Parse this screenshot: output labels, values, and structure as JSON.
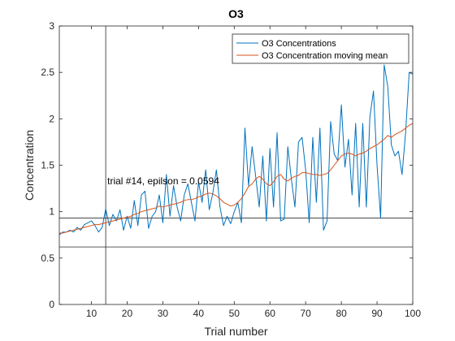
{
  "chart_data": {
    "type": "line",
    "title": "O3",
    "xlabel": "Trial number",
    "ylabel": "Concentration",
    "xlim": [
      1,
      100
    ],
    "ylim": [
      0,
      3
    ],
    "xticks": [
      10,
      20,
      30,
      40,
      50,
      60,
      70,
      80,
      90,
      100
    ],
    "xtick_labels": [
      "10",
      "20",
      "30",
      "40",
      "50",
      "60",
      "70",
      "80",
      "90",
      "100"
    ],
    "yticks": [
      0,
      0.5,
      1,
      1.5,
      2,
      2.5,
      3
    ],
    "ytick_labels": [
      "0",
      "0.5",
      "1",
      "1.5",
      "2",
      "2.5",
      "3"
    ],
    "grid": false,
    "legend_position": "top-right",
    "series": [
      {
        "name": "O3 Concentrations",
        "color": "#0072BD",
        "x": [
          1,
          2,
          3,
          4,
          5,
          6,
          7,
          8,
          9,
          10,
          11,
          12,
          13,
          14,
          15,
          16,
          17,
          18,
          19,
          20,
          21,
          22,
          23,
          24,
          25,
          26,
          27,
          28,
          29,
          30,
          31,
          32,
          33,
          34,
          35,
          36,
          37,
          38,
          39,
          40,
          41,
          42,
          43,
          44,
          45,
          46,
          47,
          48,
          49,
          50,
          51,
          52,
          53,
          54,
          55,
          56,
          57,
          58,
          59,
          60,
          61,
          62,
          63,
          64,
          65,
          66,
          67,
          68,
          69,
          70,
          71,
          72,
          73,
          74,
          75,
          76,
          77,
          78,
          79,
          80,
          81,
          82,
          83,
          84,
          85,
          86,
          87,
          88,
          89,
          90,
          91,
          92,
          93,
          94,
          95,
          96,
          97,
          98,
          99,
          100
        ],
        "y": [
          0.75,
          0.78,
          0.78,
          0.8,
          0.78,
          0.83,
          0.8,
          0.86,
          0.88,
          0.9,
          0.85,
          0.78,
          0.83,
          1.03,
          0.85,
          0.97,
          0.9,
          1.02,
          0.8,
          0.95,
          0.82,
          1.12,
          0.85,
          1.18,
          1.22,
          0.82,
          0.95,
          1.0,
          1.18,
          0.88,
          1.4,
          0.95,
          1.28,
          1.05,
          0.9,
          1.18,
          1.3,
          1.1,
          0.9,
          1.32,
          1.1,
          1.45,
          1.02,
          1.2,
          1.45,
          1.05,
          0.85,
          0.95,
          0.87,
          1.0,
          1.1,
          0.88,
          1.9,
          1.28,
          1.7,
          1.38,
          1.05,
          1.6,
          0.9,
          1.68,
          1.05,
          1.85,
          0.9,
          0.92,
          1.7,
          1.35,
          1.05,
          1.75,
          1.8,
          1.45,
          0.88,
          1.8,
          1.1,
          1.9,
          0.8,
          0.9,
          1.97,
          1.62,
          1.55,
          2.15,
          1.48,
          1.78,
          1.18,
          1.95,
          1.05,
          1.95,
          1.05,
          2.02,
          2.3,
          1.5,
          0.93,
          2.58,
          2.35,
          1.72,
          1.6,
          1.65,
          1.4,
          1.85,
          2.5,
          2.48
        ]
      },
      {
        "name": "O3 Concentration moving mean",
        "color": "#D95319",
        "x": [
          1,
          2,
          3,
          4,
          5,
          6,
          7,
          8,
          9,
          10,
          11,
          12,
          13,
          14,
          15,
          16,
          17,
          18,
          19,
          20,
          21,
          22,
          23,
          24,
          25,
          26,
          27,
          28,
          29,
          30,
          31,
          32,
          33,
          34,
          35,
          36,
          37,
          38,
          39,
          40,
          41,
          42,
          43,
          44,
          45,
          46,
          47,
          48,
          49,
          50,
          51,
          52,
          53,
          54,
          55,
          56,
          57,
          58,
          59,
          60,
          61,
          62,
          63,
          64,
          65,
          66,
          67,
          68,
          69,
          70,
          71,
          72,
          73,
          74,
          75,
          76,
          77,
          78,
          79,
          80,
          81,
          82,
          83,
          84,
          85,
          86,
          87,
          88,
          89,
          90,
          91,
          92,
          93,
          94,
          95,
          96,
          97,
          98,
          99,
          100
        ],
        "y": [
          0.77,
          0.77,
          0.78,
          0.79,
          0.8,
          0.81,
          0.82,
          0.83,
          0.84,
          0.85,
          0.86,
          0.86,
          0.87,
          0.88,
          0.89,
          0.9,
          0.91,
          0.92,
          0.93,
          0.94,
          0.95,
          0.97,
          0.98,
          1.0,
          1.01,
          1.02,
          1.03,
          1.04,
          1.06,
          1.05,
          1.06,
          1.07,
          1.08,
          1.09,
          1.1,
          1.12,
          1.13,
          1.13,
          1.14,
          1.16,
          1.17,
          1.19,
          1.2,
          1.19,
          1.17,
          1.14,
          1.1,
          1.08,
          1.06,
          1.07,
          1.1,
          1.14,
          1.2,
          1.27,
          1.3,
          1.35,
          1.38,
          1.35,
          1.3,
          1.28,
          1.32,
          1.38,
          1.4,
          1.35,
          1.33,
          1.36,
          1.38,
          1.39,
          1.42,
          1.42,
          1.41,
          1.4,
          1.4,
          1.39,
          1.4,
          1.41,
          1.45,
          1.5,
          1.55,
          1.6,
          1.62,
          1.63,
          1.62,
          1.6,
          1.62,
          1.63,
          1.65,
          1.68,
          1.7,
          1.72,
          1.75,
          1.78,
          1.82,
          1.8,
          1.83,
          1.85,
          1.87,
          1.9,
          1.93,
          1.95
        ]
      }
    ],
    "reference_lines": {
      "vertical_x": [
        14
      ],
      "horizontal_y": [
        0.93,
        0.62
      ]
    },
    "annotation": {
      "text": "trial #14, epilson = 0.0594",
      "x": 14,
      "y": 1.33
    }
  }
}
